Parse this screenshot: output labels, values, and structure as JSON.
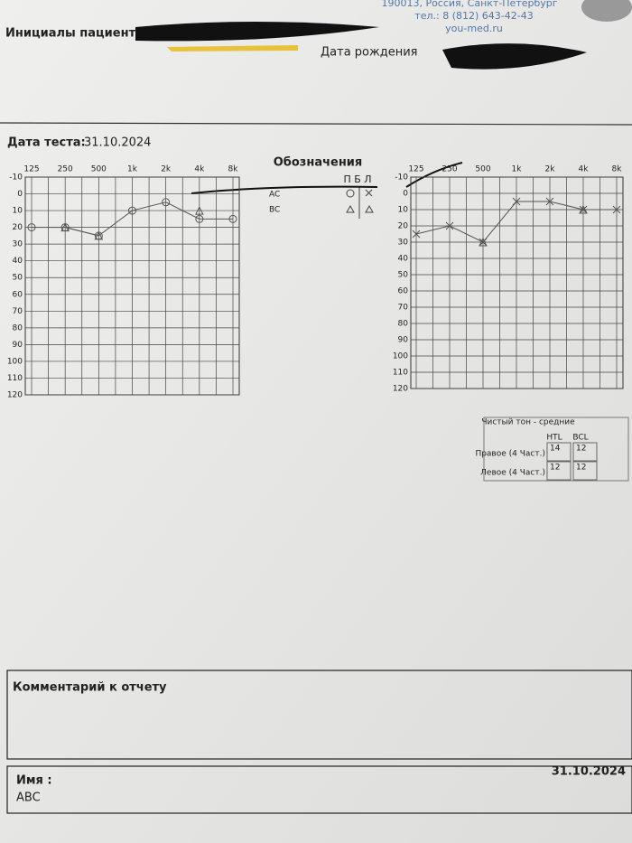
{
  "header": {
    "address": "190013, Россия, Санкт-Петербург",
    "phone": "тел.: 8 (812) 643-42-43",
    "site": "you-med.ru",
    "patient_label": "Инициалы пациента",
    "birth_label": "Дата рождения"
  },
  "test": {
    "label": "Дата теста:",
    "date": "31.10.2024"
  },
  "legend": {
    "title": "Обозначения",
    "columns": "П Б Л",
    "ac": "AC",
    "bc": "BC"
  },
  "chart_data": [
    {
      "type": "line",
      "categories": [
        "125",
        "250",
        "500",
        "1k",
        "2k",
        "4k",
        "8k"
      ],
      "ylim": [
        -10,
        120
      ],
      "yticks": [
        -10,
        0,
        10,
        20,
        30,
        40,
        50,
        60,
        70,
        80,
        90,
        100,
        110,
        120
      ],
      "inverted": true,
      "grid": true,
      "series": [
        {
          "marker": "circle",
          "color": "#555",
          "values": [
            20,
            20,
            25,
            10,
            5,
            15,
            15
          ]
        },
        {
          "marker": "triangle",
          "color": "#555",
          "values": [
            null,
            20,
            25,
            null,
            null,
            10,
            null
          ]
        }
      ]
    },
    {
      "type": "line",
      "categories": [
        "125",
        "250",
        "500",
        "1k",
        "2k",
        "4k",
        "8k"
      ],
      "ylim": [
        -10,
        120
      ],
      "yticks": [
        -10,
        0,
        10,
        20,
        30,
        40,
        50,
        60,
        70,
        80,
        90,
        100,
        110,
        120
      ],
      "inverted": true,
      "grid": true,
      "series": [
        {
          "marker": "x",
          "color": "#555",
          "values": [
            25,
            20,
            30,
            5,
            5,
            10,
            10
          ]
        },
        {
          "marker": "triangle",
          "color": "#555",
          "values": [
            null,
            null,
            30,
            null,
            null,
            10,
            null
          ]
        }
      ]
    }
  ],
  "averages": {
    "title": "Чистый тон - средние",
    "columns": [
      "HTL",
      "BCL"
    ],
    "rows": [
      {
        "label": "Правое (4 Част.)",
        "values": [
          14,
          12
        ]
      },
      {
        "label": "Левое (4 Част.)",
        "values": [
          12,
          12
        ]
      }
    ]
  },
  "comment": {
    "label": "Комментарий к отчету"
  },
  "footer": {
    "name_label": "Имя :",
    "name": "ABC",
    "date": "31.10.2024"
  }
}
